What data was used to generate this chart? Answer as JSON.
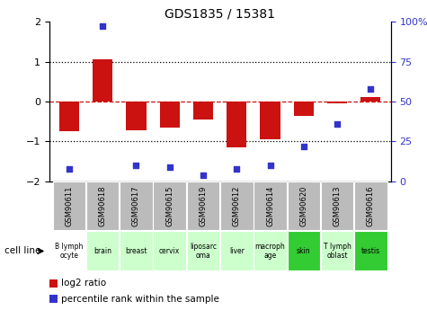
{
  "title": "GDS1835 / 15381",
  "samples": [
    "GSM90611",
    "GSM90618",
    "GSM90617",
    "GSM90615",
    "GSM90619",
    "GSM90612",
    "GSM90614",
    "GSM90620",
    "GSM90613",
    "GSM90616"
  ],
  "cell_lines": [
    "B lymph\nocyte",
    "brain",
    "breast",
    "cervix",
    "liposarc\noma",
    "liver",
    "macroph\nage",
    "skin",
    "T lymph\noblast",
    "testis"
  ],
  "log2_ratio": [
    -0.75,
    1.05,
    -0.72,
    -0.65,
    -0.45,
    -1.15,
    -0.95,
    -0.35,
    -0.05,
    0.12
  ],
  "percentile_rank": [
    8,
    97,
    10,
    9,
    4,
    8,
    10,
    22,
    36,
    58
  ],
  "bar_color": "#cc1111",
  "dot_color": "#3333cc",
  "bg_color": "#ffffff",
  "ylim_left": [
    -2,
    2
  ],
  "ylim_right": [
    0,
    100
  ],
  "yticks_left": [
    -2,
    -1,
    0,
    1,
    2
  ],
  "yticks_right": [
    0,
    25,
    50,
    75,
    100
  ],
  "cell_line_colors": [
    "#ffffff",
    "#ccffcc",
    "#ccffcc",
    "#ccffcc",
    "#ccffcc",
    "#ccffcc",
    "#ccffcc",
    "#33cc33",
    "#ccffcc",
    "#33cc33"
  ],
  "gsm_bg": "#bbbbbb",
  "legend_red": "log2 ratio",
  "legend_blue": "percentile rank within the sample",
  "cell_line_label": "cell line"
}
